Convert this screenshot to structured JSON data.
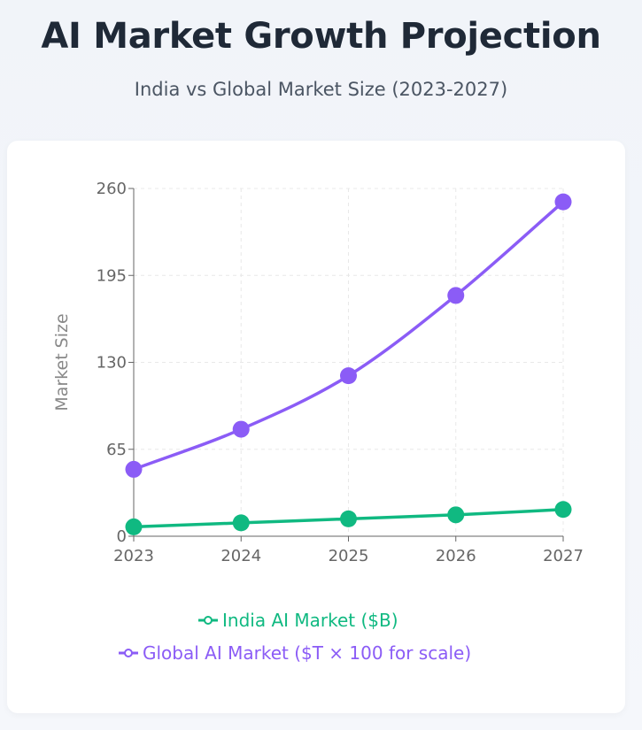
{
  "header": {
    "title": "AI Market Growth Projection",
    "subtitle": "India vs Global Market Size (2023-2027)"
  },
  "chart_data": {
    "type": "line",
    "x": [
      "2023",
      "2024",
      "2025",
      "2026",
      "2027"
    ],
    "ylabel": "Market Size",
    "ylim": [
      0,
      260
    ],
    "yticks": [
      0,
      65,
      130,
      195,
      260
    ],
    "grid": true,
    "legend_position": "bottom",
    "series": [
      {
        "name": "India AI Market ($B)",
        "values": [
          7,
          10,
          13,
          16,
          20
        ],
        "color": "#10b981"
      },
      {
        "name": "Global AI Market ($T × 100 for scale)",
        "values": [
          50,
          80,
          120,
          180,
          250
        ],
        "color": "#8b5cf6"
      }
    ]
  }
}
